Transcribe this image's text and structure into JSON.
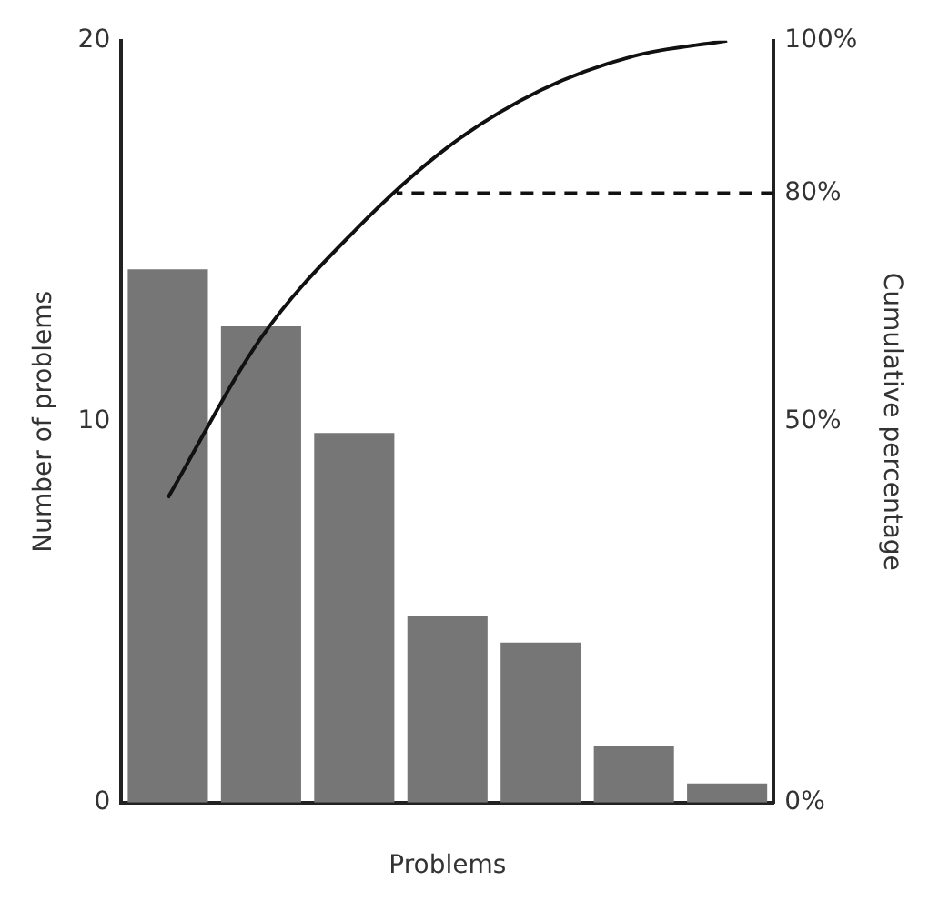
{
  "chart_data": {
    "type": "bar",
    "xlabel": "Problems",
    "ylabel": "Number of problems",
    "y2label": "Cumulative percentage",
    "categories": [
      null,
      null,
      null,
      null,
      null,
      null,
      null
    ],
    "series": [
      {
        "color": "#767676",
        "values": [
          14,
          12.5,
          9.7,
          4.9,
          4.2,
          1.5,
          0.5
        ]
      },
      {
        "type": "line",
        "axis": "y2",
        "color": "#111111",
        "values": [
          40,
          61,
          75,
          86,
          93.5,
          98,
          100
        ]
      }
    ],
    "ylim": [
      0,
      20
    ],
    "yticks": [
      0,
      10,
      20
    ],
    "y2lim": [
      0,
      100
    ],
    "y2ticks": [
      {
        "value": 0,
        "label": "0%"
      },
      {
        "value": 50,
        "label": "50%"
      },
      {
        "value": 80,
        "label": "80%"
      },
      {
        "value": 100,
        "label": "100%"
      }
    ],
    "ref_lines": [
      {
        "axis": "y2",
        "value": 80,
        "color": "#111111",
        "line_style": "dashed"
      }
    ],
    "grid": false,
    "legend": false,
    "marker": "none",
    "line_style": "solid"
  }
}
